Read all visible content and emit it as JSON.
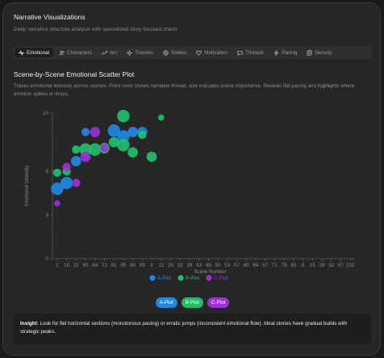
{
  "header": {
    "title": "Narrative Visualizations",
    "subtitle": "Deep narrative structure analysis with specialized story-focused charts"
  },
  "tabs": [
    {
      "label": "Emotional",
      "icon": "pulse-icon",
      "active": true
    },
    {
      "label": "Characters",
      "icon": "users-icon",
      "active": false
    },
    {
      "label": "Arc",
      "icon": "trend-icon",
      "active": false
    },
    {
      "label": "Themes",
      "icon": "sparkle-icon",
      "active": false
    },
    {
      "label": "Stakes",
      "icon": "target-icon",
      "active": false
    },
    {
      "label": "Motivation",
      "icon": "heart-icon",
      "active": false
    },
    {
      "label": "Threads",
      "icon": "chat-icon",
      "active": false
    },
    {
      "label": "Pacing",
      "icon": "bolt-icon",
      "active": false
    },
    {
      "label": "Density",
      "icon": "database-icon",
      "active": false
    }
  ],
  "chart_section": {
    "title": "Scene-by-Scene Emotional Scatter Plot",
    "description": "Tracks emotional intensity across scenes. Point color shows narrative thread, size indicates scene importance. Reveals flat pacing and highlights where emotion spikes or drops."
  },
  "colors": {
    "a_plot": "#1e88e5",
    "b_plot": "#1fbf6a",
    "c_plot": "#9b30d9",
    "grid": "#333333",
    "axis": "#5a5a5a",
    "tick": "#8a8a8a"
  },
  "chart_data": {
    "type": "scatter",
    "ylabel": "Emotional Intensity",
    "xlabel": "Scene Number",
    "ylim": [
      0,
      10
    ],
    "y_ticks": [
      0,
      3,
      6,
      10
    ],
    "grid": true,
    "legend_position": "bottom",
    "x_categories": [
      "1",
      "18",
      "22",
      "60",
      "64",
      "71",
      "81",
      "85",
      "88",
      "99",
      "4",
      "11",
      "25",
      "32",
      "39",
      "43",
      "46",
      "50",
      "53",
      "57",
      "60",
      "64",
      "67",
      "71",
      "78",
      "85",
      "8",
      "15",
      "29",
      "32",
      "67",
      "102"
    ],
    "series": [
      {
        "name": "A-Plot",
        "color": "#1e88e5",
        "points": [
          {
            "x": 0,
            "y": 4.8,
            "importance": 4
          },
          {
            "x": 1,
            "y": 5.2,
            "importance": 4
          },
          {
            "x": 2,
            "y": 6.7,
            "importance": 3
          },
          {
            "x": 3,
            "y": 8.7,
            "importance": 2
          },
          {
            "x": 5,
            "y": 7.5,
            "importance": 2
          },
          {
            "x": 6,
            "y": 8.8,
            "importance": 4
          },
          {
            "x": 7,
            "y": 8.4,
            "importance": 4
          },
          {
            "x": 8,
            "y": 8.7,
            "importance": 3
          },
          {
            "x": 9,
            "y": 8.7,
            "importance": 3
          }
        ]
      },
      {
        "name": "B-Plot",
        "color": "#1fbf6a",
        "points": [
          {
            "x": 0,
            "y": 5.9,
            "importance": 2
          },
          {
            "x": 1,
            "y": 6.0,
            "importance": 2
          },
          {
            "x": 2,
            "y": 7.5,
            "importance": 2
          },
          {
            "x": 3,
            "y": 7.5,
            "importance": 4
          },
          {
            "x": 4,
            "y": 7.5,
            "importance": 4
          },
          {
            "x": 5,
            "y": 7.6,
            "importance": 3
          },
          {
            "x": 6,
            "y": 8.0,
            "importance": 3
          },
          {
            "x": 7,
            "y": 7.8,
            "importance": 4
          },
          {
            "x": 7,
            "y": 9.8,
            "importance": 4
          },
          {
            "x": 8,
            "y": 7.3,
            "importance": 3
          },
          {
            "x": 9,
            "y": 8.5,
            "importance": 2
          },
          {
            "x": 10,
            "y": 7.0,
            "importance": 3
          },
          {
            "x": 11,
            "y": 9.7,
            "importance": 1
          }
        ]
      },
      {
        "name": "C-Plot",
        "color": "#9b30d9",
        "points": [
          {
            "x": 0,
            "y": 3.8,
            "importance": 1
          },
          {
            "x": 1,
            "y": 6.3,
            "importance": 2
          },
          {
            "x": 2,
            "y": 5.2,
            "importance": 2
          },
          {
            "x": 3,
            "y": 7.0,
            "importance": 3
          },
          {
            "x": 4,
            "y": 8.7,
            "importance": 3
          },
          {
            "x": 5,
            "y": 7.6,
            "importance": 2
          }
        ]
      }
    ]
  },
  "pills": [
    {
      "label": "A-Plot",
      "color": "#1e88e5"
    },
    {
      "label": "B-Plot",
      "color": "#1fbf6a"
    },
    {
      "label": "C-Plot",
      "color": "#9b30d9"
    }
  ],
  "insight": {
    "label": "Insight:",
    "text": "Look for flat horizontal sections (monotonous pacing) or erratic jumps (inconsistent emotional flow). Ideal stories have gradual builds with strategic peaks."
  }
}
